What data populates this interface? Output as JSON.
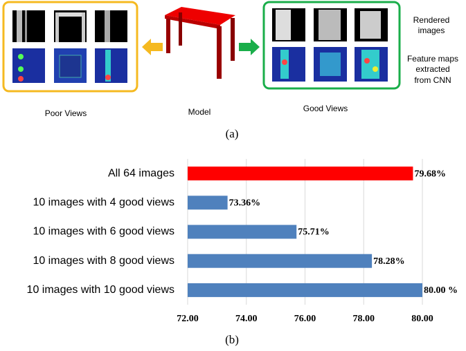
{
  "panel_a": {
    "caption": "(a)",
    "poor_views": "Poor Views",
    "model": "Model",
    "good_views": "Good Views",
    "rendered_images": [
      "Rendered",
      "images"
    ],
    "feature_maps": [
      "Feature maps",
      "extracted",
      "from CNN"
    ]
  },
  "chart_data": {
    "type": "barh",
    "caption": "(b)",
    "categories": [
      "All 64 images",
      "10 images with 4 good views",
      "10 images with 6 good views",
      "10 images with 8 good views",
      "10 images with 10 good views"
    ],
    "values": [
      79.68,
      73.36,
      75.71,
      78.28,
      80.0
    ],
    "value_labels": [
      "79.68%",
      "73.36%",
      "75.71%",
      "78.28%",
      "80.00 %"
    ],
    "colors": [
      "#ff0000",
      "#4f81bd",
      "#4f81bd",
      "#4f81bd",
      "#4f81bd"
    ],
    "xlim": [
      72,
      80
    ],
    "xticks": [
      {
        "value": 72,
        "label": "72.00"
      },
      {
        "value": 74,
        "label": "74.00"
      },
      {
        "value": 76,
        "label": "76.00"
      },
      {
        "value": 78,
        "label": "78.00"
      },
      {
        "value": 80,
        "label": "80.00"
      }
    ],
    "grid": true
  }
}
